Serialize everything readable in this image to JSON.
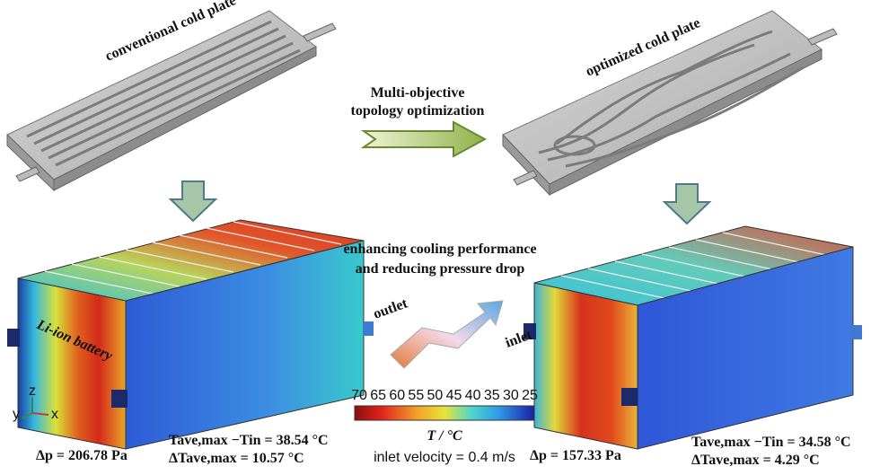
{
  "labels": {
    "conventional": "conventional cold plate",
    "optimized": "optimized cold plate",
    "method": [
      "Multi-objective",
      "topology optimization"
    ],
    "goal": [
      "enhancing cooling performance",
      "and reducing pressure drop"
    ],
    "battery": "Li-ion battery",
    "outlet": "outlet",
    "inlet": "inlet",
    "axes": [
      "z",
      "y",
      "x"
    ]
  },
  "colorbar": {
    "ticks": [
      "70",
      "65",
      "60",
      "55",
      "50",
      "45",
      "40",
      "35",
      "30",
      "25"
    ],
    "title": "T / °C"
  },
  "conventional_results": {
    "dp": "Δp = 206.78 Pa",
    "rise": "Tave,max −Tin = 38.54 °C",
    "spread": "ΔTave,max = 10.57 °C"
  },
  "optimized_results": {
    "dp": "Δp = 157.33 Pa",
    "rise": "Tave,max −Tin = 34.58 °C",
    "spread": "ΔTave,max = 4.29 °C"
  },
  "velocity": "inlet velocity = 0.4 m/s"
}
